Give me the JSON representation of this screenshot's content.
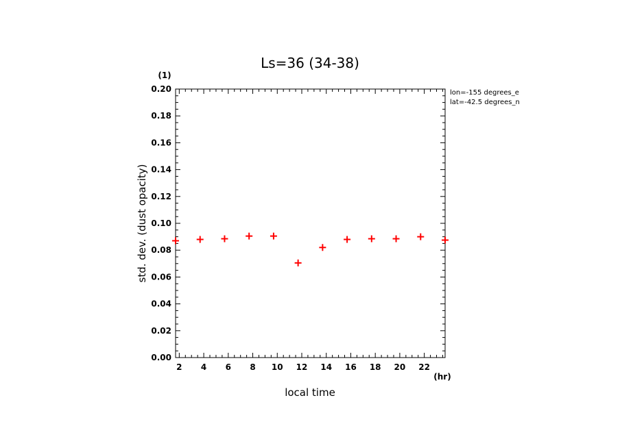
{
  "chart_data": {
    "type": "scatter",
    "title": "Ls=36 (34-38)",
    "xlabel": "local time",
    "ylabel": "std. dev. (dust opacity)",
    "x_unit": "(hr)",
    "y_unit": "(1)",
    "xlim": [
      1.7,
      23.7
    ],
    "ylim": [
      0,
      0.2
    ],
    "x_ticks": [
      "2",
      "4",
      "6",
      "8",
      "10",
      "12",
      "14",
      "16",
      "18",
      "20",
      "22"
    ],
    "y_ticks": [
      "0.00",
      "0.02",
      "0.04",
      "0.06",
      "0.08",
      "0.10",
      "0.12",
      "0.14",
      "0.16",
      "0.18",
      "0.20"
    ],
    "annotations": [
      "lon=-155 degrees_e",
      "lat=-42.5 degrees_n"
    ],
    "marker": "+",
    "marker_color": "#ff0000",
    "series": [
      {
        "x": [
          1.7,
          3.7,
          5.7,
          7.7,
          9.7,
          11.7,
          13.7,
          15.7,
          17.7,
          19.7,
          21.7,
          23.7
        ],
        "y": [
          0.087,
          0.088,
          0.0885,
          0.0905,
          0.0905,
          0.0705,
          0.082,
          0.088,
          0.0885,
          0.0885,
          0.09,
          0.0875
        ]
      }
    ]
  }
}
